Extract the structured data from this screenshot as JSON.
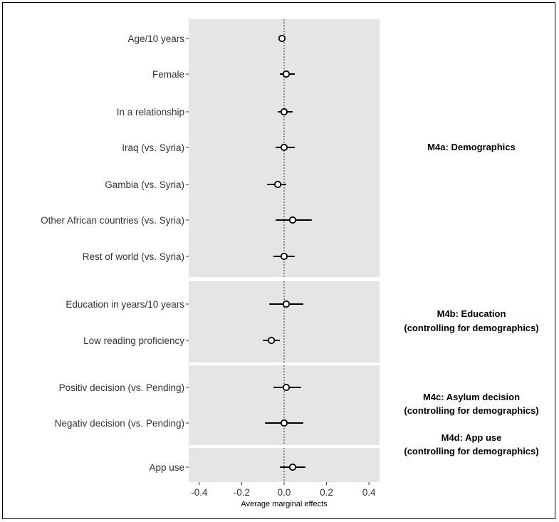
{
  "chart_data": {
    "type": "scatter",
    "xlabel": "Average marginal effects",
    "xlim": [
      -0.45,
      0.45
    ],
    "xticks": [
      "-0.4",
      "-0.2",
      "0.0",
      "0.2",
      "0.4"
    ],
    "xtick_values": [
      -0.4,
      -0.2,
      0.0,
      0.2,
      0.4
    ],
    "reference_line": 0,
    "panels": [
      {
        "label": "M4a: Demographics",
        "rows": [
          {
            "label": "Age/10 years",
            "estimate": -0.01,
            "lower": -0.02,
            "upper": 0.0
          },
          {
            "label": "Female",
            "estimate": 0.01,
            "lower": -0.02,
            "upper": 0.05
          },
          {
            "label": "In a relationship",
            "estimate": 0.0,
            "lower": -0.03,
            "upper": 0.04
          },
          {
            "label": "Iraq (vs. Syria)",
            "estimate": 0.0,
            "lower": -0.04,
            "upper": 0.05
          },
          {
            "label": "Gambia (vs. Syria)",
            "estimate": -0.03,
            "lower": -0.08,
            "upper": 0.01
          },
          {
            "label": "Other African countries (vs. Syria)",
            "estimate": 0.04,
            "lower": -0.04,
            "upper": 0.13
          },
          {
            "label": "Rest of world (vs. Syria)",
            "estimate": 0.0,
            "lower": -0.05,
            "upper": 0.05
          }
        ]
      },
      {
        "label": "M4b: Education\n(controlling for demographics)",
        "rows": [
          {
            "label": "Education in years/10 years",
            "estimate": 0.01,
            "lower": -0.07,
            "upper": 0.09
          },
          {
            "label": "Low reading proficiency",
            "estimate": -0.06,
            "lower": -0.1,
            "upper": -0.02
          }
        ]
      },
      {
        "label": "M4c: Asylum decision\n(controlling for demographics)",
        "rows": [
          {
            "label": "Positiv decision (vs. Pending)",
            "estimate": 0.01,
            "lower": -0.05,
            "upper": 0.08
          },
          {
            "label": "Negativ decision (vs. Pending)",
            "estimate": 0.0,
            "lower": -0.09,
            "upper": 0.09
          }
        ]
      },
      {
        "label": "M4d: App use\n(controlling for demographics)",
        "rows": [
          {
            "label": "App use",
            "estimate": 0.04,
            "lower": -0.02,
            "upper": 0.1
          }
        ]
      }
    ],
    "colors": {
      "panel_bg": "#e5e5e5",
      "point_fill": "#ffffff",
      "line": "#000000"
    }
  }
}
